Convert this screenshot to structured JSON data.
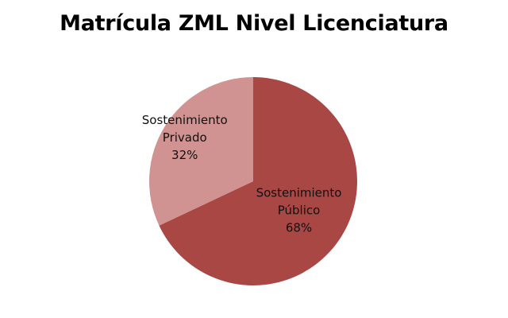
{
  "chart_data": {
    "type": "pie",
    "title": "Matrícula ZML Nivel Licenciatura",
    "slices": [
      {
        "label_lines": [
          "Sostenimiento",
          "Público"
        ],
        "value": 68,
        "value_label": "68%",
        "color": "#a84744"
      },
      {
        "label_lines": [
          "Sostenimiento",
          "Privado"
        ],
        "value": 32,
        "value_label": "32%",
        "color": "#d09391"
      }
    ],
    "legend": "none",
    "start": "12 o'clock",
    "direction": "clockwise"
  }
}
